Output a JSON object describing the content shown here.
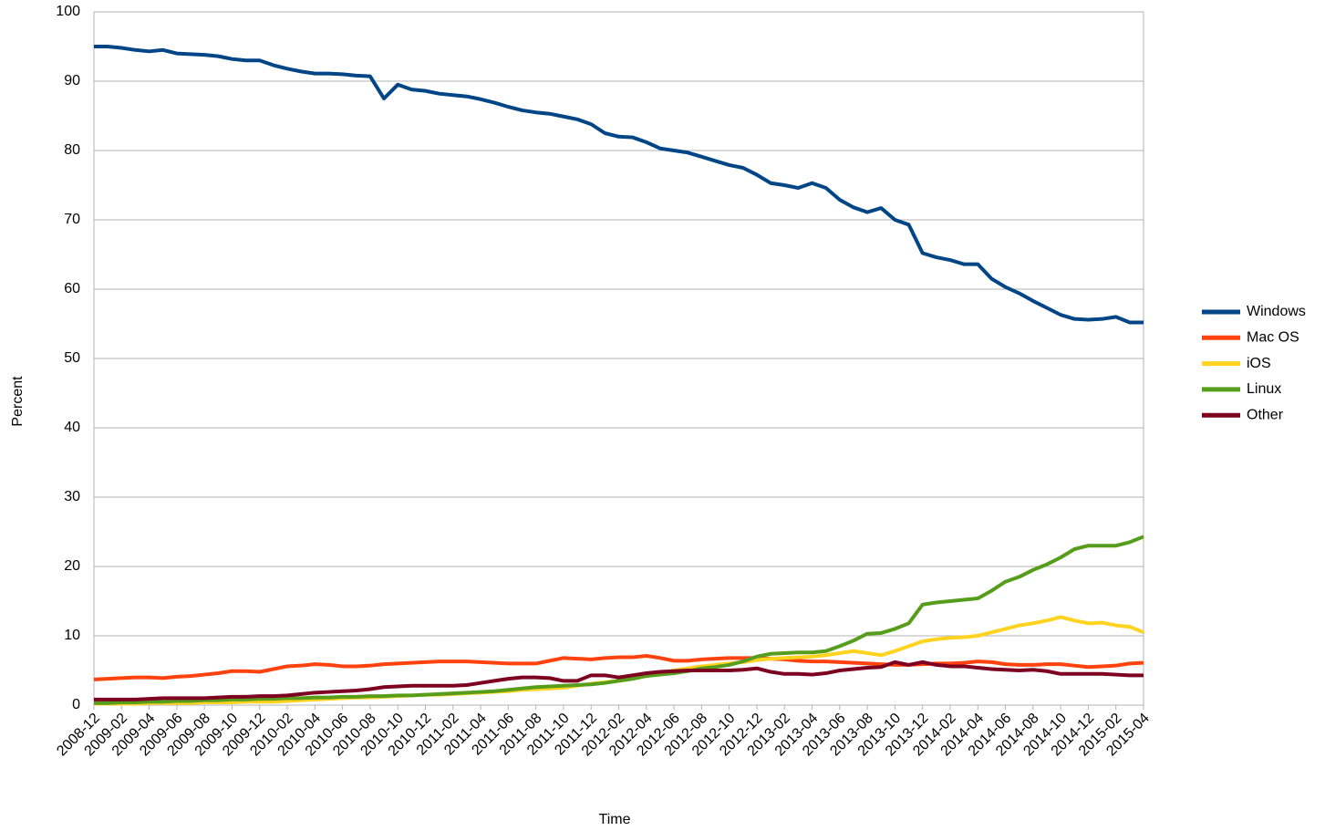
{
  "chart_data": {
    "type": "line",
    "x_label": "Time",
    "y_label": "Percent",
    "categories": [
      "2008-12",
      null,
      "2009-02",
      null,
      "2009-04",
      null,
      "2009-06",
      null,
      "2009-08",
      null,
      "2009-10",
      null,
      "2009-12",
      null,
      "2010-02",
      null,
      "2010-04",
      null,
      "2010-06",
      null,
      "2010-08",
      null,
      "2010-10",
      null,
      "2010-12",
      null,
      "2011-02",
      null,
      "2011-04",
      null,
      "2011-06",
      null,
      "2011-08",
      null,
      "2011-10",
      null,
      "2011-12",
      null,
      "2012-02",
      null,
      "2012-04",
      null,
      "2012-06",
      null,
      "2012-08",
      null,
      "2012-10",
      null,
      "2012-12",
      null,
      "2013-02",
      null,
      "2013-04",
      null,
      "2013-06",
      null,
      "2013-08",
      null,
      "2013-10",
      null,
      "2013-12",
      null,
      "2014-02",
      null,
      "2014-04",
      null,
      "2014-06",
      null,
      "2014-08",
      null,
      "2014-10",
      null,
      "2014-12",
      null,
      "2015-02",
      null,
      "2015-04"
    ],
    "series": [
      {
        "name": "Windows",
        "color": "#004586",
        "values": [
          95,
          95,
          94.8,
          94.5,
          94.3,
          94.5,
          94,
          93.9,
          93.8,
          93.6,
          93.2,
          93,
          93,
          92.3,
          91.8,
          91.4,
          91.1,
          91.1,
          91,
          90.8,
          90.7,
          87.5,
          89.5,
          88.8,
          88.6,
          88.2,
          88,
          87.8,
          87.4,
          86.9,
          86.3,
          85.8,
          85.5,
          85.3,
          84.9,
          84.5,
          83.8,
          82.5,
          82,
          81.9,
          81.2,
          80.3,
          80,
          79.7,
          79.1,
          78.5,
          77.9,
          77.5,
          76.5,
          75.3,
          75,
          74.6,
          75.3,
          74.6,
          72.9,
          71.8,
          71.1,
          71.7,
          70,
          69.3,
          65.2,
          64.6,
          64.2,
          63.6,
          63.6,
          61.5,
          60.3,
          59.4,
          58.3,
          57.3,
          56.3,
          55.7,
          55.6,
          55.7,
          56,
          55.2,
          55.2
        ]
      },
      {
        "name": "Mac OS",
        "color": "#ff420e",
        "values": [
          3.7,
          3.8,
          3.9,
          4,
          4,
          3.9,
          4.1,
          4.2,
          4.4,
          4.6,
          4.9,
          4.9,
          4.8,
          5.2,
          5.6,
          5.7,
          5.9,
          5.8,
          5.6,
          5.6,
          5.7,
          5.9,
          6,
          6.1,
          6.2,
          6.3,
          6.3,
          6.3,
          6.2,
          6.1,
          6,
          6,
          6,
          6.4,
          6.8,
          6.7,
          6.6,
          6.8,
          6.9,
          6.9,
          7.1,
          6.8,
          6.4,
          6.4,
          6.6,
          6.7,
          6.8,
          6.8,
          6.8,
          6.7,
          6.6,
          6.4,
          6.3,
          6.3,
          6.2,
          6.1,
          6,
          5.9,
          5.8,
          5.8,
          5.9,
          6,
          6,
          6.1,
          6.3,
          6.2,
          5.9,
          5.8,
          5.8,
          5.9,
          5.9,
          5.7,
          5.5,
          5.6,
          5.7,
          6,
          6.1
        ]
      },
      {
        "name": "iOS",
        "color": "#ffd320",
        "values": [
          0.2,
          0.2,
          0.2,
          0.2,
          0.3,
          0.3,
          0.3,
          0.3,
          0.4,
          0.4,
          0.4,
          0.5,
          0.5,
          0.5,
          0.6,
          0.7,
          0.8,
          0.9,
          1,
          1.1,
          1.1,
          1.2,
          1.3,
          1.4,
          1.5,
          1.5,
          1.6,
          1.7,
          1.8,
          1.9,
          2,
          2.2,
          2.3,
          2.4,
          2.5,
          2.8,
          3.1,
          3.3,
          3.5,
          3.8,
          4.2,
          4.6,
          5,
          5.3,
          5.6,
          5.8,
          6,
          6.2,
          6.5,
          6.7,
          6.8,
          6.9,
          7,
          7.2,
          7.5,
          7.8,
          7.5,
          7.2,
          7.8,
          8.5,
          9.2,
          9.5,
          9.7,
          9.8,
          10,
          10.5,
          11,
          11.5,
          11.8,
          12.2,
          12.7,
          12.2,
          11.8,
          11.9,
          11.5,
          11.3,
          10.5
        ]
      },
      {
        "name": "Linux",
        "color": "#579d1c",
        "values": [
          0.3,
          0.3,
          0.4,
          0.4,
          0.5,
          0.5,
          0.6,
          0.6,
          0.7,
          0.7,
          0.8,
          0.8,
          0.9,
          0.9,
          1,
          1,
          1.1,
          1.1,
          1.2,
          1.2,
          1.3,
          1.3,
          1.4,
          1.4,
          1.5,
          1.6,
          1.7,
          1.8,
          1.9,
          2,
          2.2,
          2.4,
          2.6,
          2.7,
          2.8,
          2.9,
          3,
          3.2,
          3.5,
          3.8,
          4.2,
          4.4,
          4.6,
          4.9,
          5.3,
          5.5,
          5.8,
          6.3,
          7,
          7.4,
          7.5,
          7.6,
          7.6,
          7.8,
          8.5,
          9.3,
          10.3,
          10.4,
          11,
          11.8,
          14.5,
          14.8,
          15,
          15.2,
          15.4,
          16.5,
          17.8,
          18.5,
          19.5,
          20.3,
          21.3,
          22.5,
          23,
          23,
          23,
          23.5,
          24.3
        ]
      },
      {
        "name": "Other",
        "color": "#7e0021",
        "values": [
          0.8,
          0.8,
          0.8,
          0.8,
          0.9,
          1,
          1,
          1,
          1,
          1.1,
          1.2,
          1.2,
          1.3,
          1.3,
          1.4,
          1.6,
          1.8,
          1.9,
          2,
          2.1,
          2.3,
          2.6,
          2.7,
          2.8,
          2.8,
          2.8,
          2.8,
          2.9,
          3.2,
          3.5,
          3.8,
          4,
          4,
          3.9,
          3.5,
          3.5,
          4.3,
          4.3,
          4,
          4.3,
          4.6,
          4.8,
          4.9,
          5,
          5,
          5,
          5,
          5.1,
          5.3,
          4.8,
          4.5,
          4.5,
          4.4,
          4.6,
          5,
          5.2,
          5.4,
          5.5,
          6.2,
          5.8,
          6.2,
          5.8,
          5.6,
          5.6,
          5.4,
          5.2,
          5.1,
          5,
          5.1,
          4.9,
          4.5,
          4.5,
          4.5,
          4.5,
          4.4,
          4.3,
          4.3
        ]
      }
    ],
    "ylim": [
      0,
      100
    ],
    "yticks": [
      0,
      10,
      20,
      30,
      40,
      50,
      60,
      70,
      80,
      90,
      100
    ],
    "grid": true,
    "legend": "right"
  }
}
